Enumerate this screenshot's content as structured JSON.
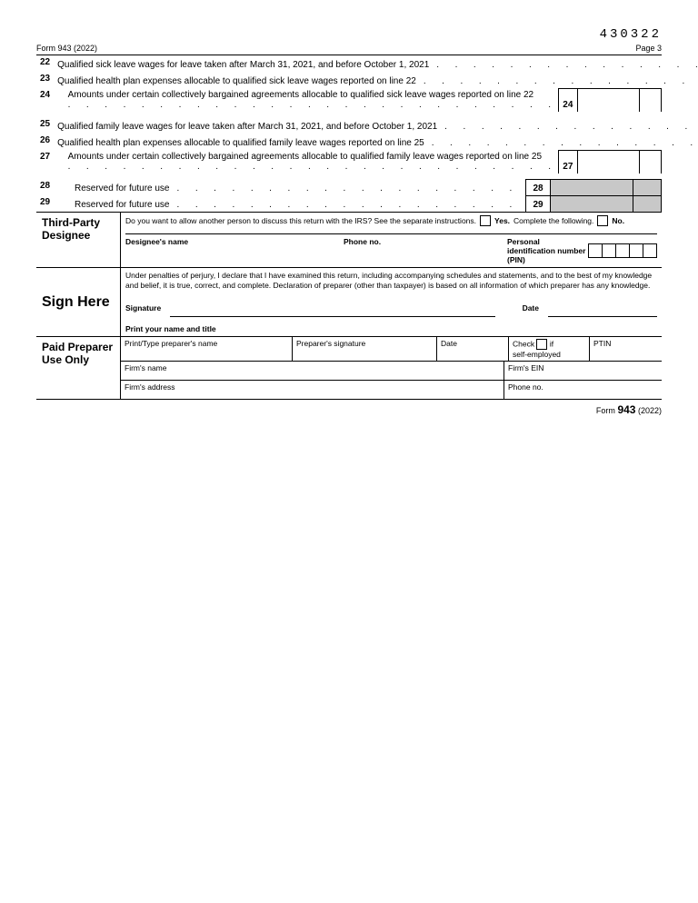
{
  "ocr_code": "430322",
  "header": {
    "form": "Form 943 (2022)",
    "page": "Page 3"
  },
  "lines": [
    {
      "n": "22",
      "t": "Qualified sick leave wages for leave taken after March 31, 2021, and before October 1, 2021",
      "multi": false,
      "reserved": false
    },
    {
      "n": "23",
      "t": "Qualified health plan expenses allocable to qualified sick leave wages reported on line 22",
      "multi": false,
      "reserved": false
    },
    {
      "n": "24",
      "t": "Amounts under certain collectively bargained agreements allocable to qualified sick leave wages reported on line 22",
      "multi": true,
      "reserved": false
    },
    {
      "n": "25",
      "t": "Qualified family leave wages for leave taken after March 31, 2021, and before October 1, 2021",
      "multi": false,
      "reserved": false
    },
    {
      "n": "26",
      "t": "Qualified health plan expenses allocable to qualified family leave wages reported on line 25",
      "multi": false,
      "reserved": false
    },
    {
      "n": "27",
      "t": "Amounts under certain collectively bargained agreements allocable to qualified family leave wages reported on line 25",
      "multi": true,
      "reserved": false
    },
    {
      "n": "28",
      "t": "Reserved for future use",
      "multi": false,
      "reserved": true
    },
    {
      "n": "29",
      "t": "Reserved for future use",
      "multi": false,
      "reserved": true
    }
  ],
  "third_party": {
    "title": "Third-Party Designee",
    "question": "Do you want to allow another person to discuss this return with the IRS? See the separate instructions.",
    "yes": "Yes.",
    "yes_after": "Complete the following.",
    "no": "No.",
    "name_label": "Designee's name",
    "phone_label": "Phone no.",
    "pin_label": "Personal identification number (PIN)"
  },
  "sign": {
    "title": "Sign Here",
    "perjury": "Under penalties of perjury, I declare that I have examined this return, including accompanying schedules and statements, and to the best of my knowledge and belief, it is true, correct, and complete. Declaration of preparer (other than taxpayer) is based on all information of which preparer has any knowledge.",
    "signature": "Signature",
    "date": "Date",
    "print": "Print your name and title"
  },
  "preparer": {
    "title": "Paid Preparer Use Only",
    "print_type": "Print/Type preparer's name",
    "sig": "Preparer's signature",
    "date": "Date",
    "check": "Check",
    "if": "if",
    "self": "self-employed",
    "ptin": "PTIN",
    "firm_name": "Firm's name",
    "firm_ein": "Firm's EIN",
    "firm_addr": "Firm's address",
    "phone": "Phone no."
  },
  "footer": {
    "form": "Form",
    "num": "943",
    "year": "(2022)"
  }
}
